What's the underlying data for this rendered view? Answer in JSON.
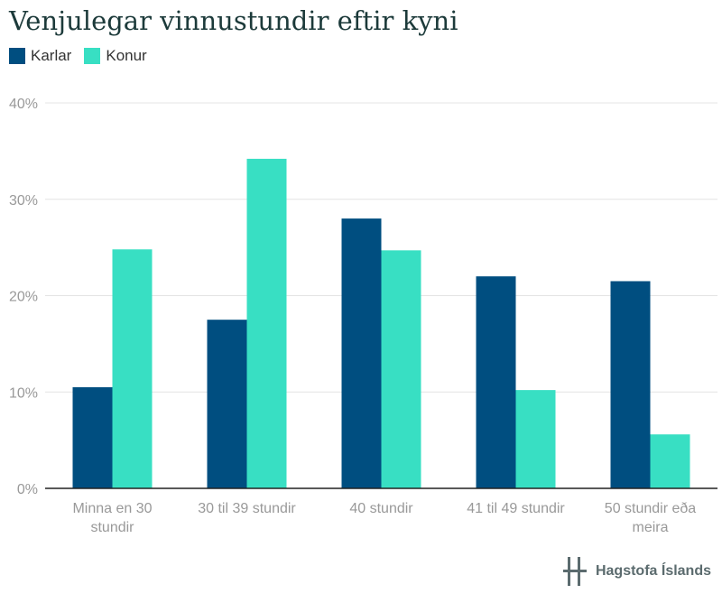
{
  "title": "Venjulegar vinnustundir eftir kyni",
  "footer": {
    "brand": "Hagstofa Íslands",
    "logo_icon": "hagstofa-logo-icon"
  },
  "colors": {
    "karlar": "#004e80",
    "konur": "#38dfc3",
    "grid": "#e4e4e4",
    "tick": "#999999",
    "axis": "#222222"
  },
  "chart_data": {
    "type": "bar",
    "categories": [
      [
        "Minna en 30",
        "stundir"
      ],
      [
        "30 til 39 stundir"
      ],
      [
        "40 stundir"
      ],
      [
        "41 til 49 stundir"
      ],
      [
        "50 stundir eða",
        "meira"
      ]
    ],
    "series": [
      {
        "name": "Karlar",
        "values": [
          10.5,
          17.5,
          28.0,
          22.0,
          21.5
        ]
      },
      {
        "name": "Konur",
        "values": [
          24.8,
          34.2,
          24.7,
          10.2,
          5.6
        ]
      }
    ],
    "ylim": [
      0,
      40
    ],
    "yticks": [
      0,
      10,
      20,
      30,
      40
    ],
    "ytick_suffix": "%",
    "grid": true,
    "legend": "top-left"
  }
}
